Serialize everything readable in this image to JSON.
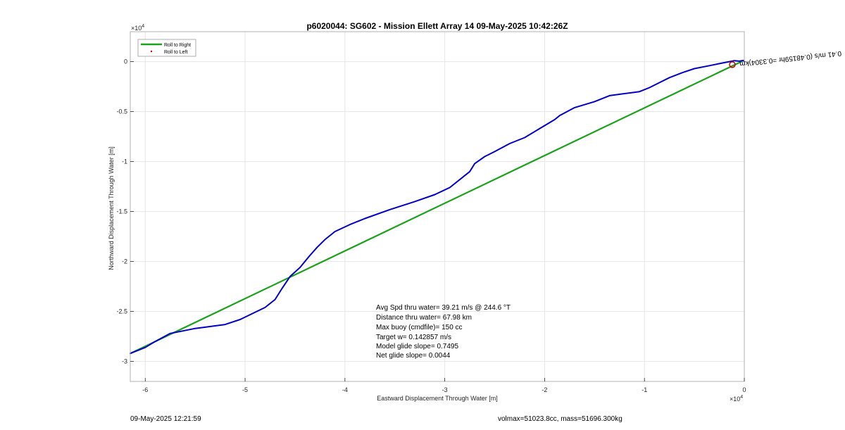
{
  "chart_data": {
    "type": "line",
    "title": "p6020044: SG602 - Mission Ellett Array 14 09-May-2025 10:42:26Z",
    "xlabel": "Eastward Displacement Through Water [m]",
    "ylabel": "Northward Displacement Through Water [m]",
    "x_exponent_label": "×10",
    "x_exponent": "4",
    "y_exponent_label": "×10",
    "y_exponent": "4",
    "xlim": [
      -61500,
      0
    ],
    "ylim": [
      -32000,
      3000
    ],
    "xticks": [
      -60000,
      -50000,
      -40000,
      -30000,
      -20000,
      -10000,
      0
    ],
    "xtick_labels": [
      "-6",
      "-5",
      "-4",
      "-3",
      "-2",
      "-1",
      "0"
    ],
    "yticks": [
      0,
      -5000,
      -10000,
      -15000,
      -20000,
      -25000,
      -30000
    ],
    "ytick_labels": [
      "0",
      "-0.5",
      "-1",
      "-1.5",
      "-2",
      "-2.5",
      "-3"
    ],
    "grid": true,
    "legend": {
      "placement": "top-left",
      "entries": [
        {
          "label": "Roll to Right",
          "color": "#1aa31a"
        },
        {
          "label": "Roll to Left",
          "color": "#cc0000"
        }
      ]
    },
    "series": [
      {
        "name": "Roll to Right",
        "color": "#1aa31a",
        "x": [
          -61500,
          -300
        ],
        "y": [
          -29200,
          0
        ]
      },
      {
        "color": "#0000c8",
        "x": [
          -61500,
          -60000,
          -59000,
          -57500,
          -55000,
          -52000,
          -50500,
          -48000,
          -47000,
          -46300,
          -45500,
          -44500,
          -43600,
          -42800,
          -42000,
          -41000,
          -39500,
          -38000,
          -35500,
          -33000,
          -31000,
          -29500,
          -28500,
          -27500,
          -27000,
          -26000,
          -25000,
          -23500,
          -22000,
          -20000,
          -19000,
          -18500,
          -17000,
          -15000,
          -13500,
          -12000,
          -10500,
          -9500,
          -8500,
          -7500,
          -6200,
          -5000,
          -3500,
          -2500,
          -1500,
          -1000,
          -500,
          -100,
          0
        ],
        "y": [
          -29200,
          -28600,
          -28000,
          -27200,
          -26700,
          -26300,
          -25800,
          -24600,
          -23800,
          -22700,
          -21500,
          -20600,
          -19500,
          -18600,
          -17800,
          -17000,
          -16300,
          -15700,
          -14800,
          -14000,
          -13300,
          -12600,
          -11800,
          -11000,
          -10200,
          -9500,
          -9000,
          -8200,
          -7600,
          -6400,
          -5800,
          -5400,
          -4600,
          -4000,
          -3400,
          -3200,
          -3000,
          -2600,
          -2100,
          -1600,
          -1100,
          -700,
          -400,
          -200,
          0,
          100,
          50,
          120,
          0
        ]
      }
    ],
    "markers": [
      {
        "x": -1200,
        "y": -300,
        "color": "#cc0000",
        "shape": "circle"
      }
    ],
    "path_label": "0.41 m/s (0.48159hr =0.3304)km",
    "annotations": [
      "Avg Spd thru water= 39.21 m/s @ 244.6 °T",
      "Distance thru water= 67.98 km",
      "Max buoy (cmdfile)= 150 cc",
      "Target w= 0.142857 m/s",
      "Model glide slope= 0.7495",
      "Net glide slope= 0.0044"
    ]
  },
  "footer": {
    "timestamp": "09-May-2025 12:21:59",
    "vol_mass": "volmax=51023.8cc, mass=51696.300kg"
  },
  "colors": {
    "grid": "#e6e6e6",
    "axis": "#262626",
    "frame": "#b0b0b0"
  }
}
